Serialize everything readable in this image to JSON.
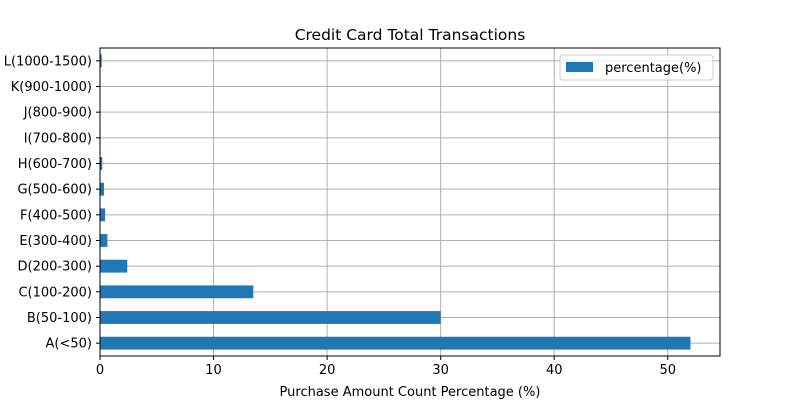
{
  "chart_data": {
    "type": "bar",
    "orientation": "horizontal",
    "title": "Credit Card Total Transactions",
    "xlabel": "Purchase Amount Count Percentage (%)",
    "ylabel": "",
    "categories": [
      "A(<50)",
      "B(50-100)",
      "C(100-200)",
      "D(200-300)",
      "E(300-400)",
      "F(400-500)",
      "G(500-600)",
      "H(600-700)",
      "I(700-800)",
      "J(800-900)",
      "K(900-1000)",
      "L(1000-1500)"
    ],
    "series": [
      {
        "name": "percentage(%)",
        "values": [
          52.0,
          30.0,
          13.5,
          2.4,
          0.65,
          0.45,
          0.35,
          0.2,
          0.05,
          0.03,
          0.02,
          0.15
        ],
        "color": "#1f77b4"
      }
    ],
    "xlim": [
      0,
      54.6
    ],
    "xticks": [
      0,
      10,
      20,
      30,
      40,
      50
    ],
    "grid": true,
    "legend": "top-right"
  }
}
